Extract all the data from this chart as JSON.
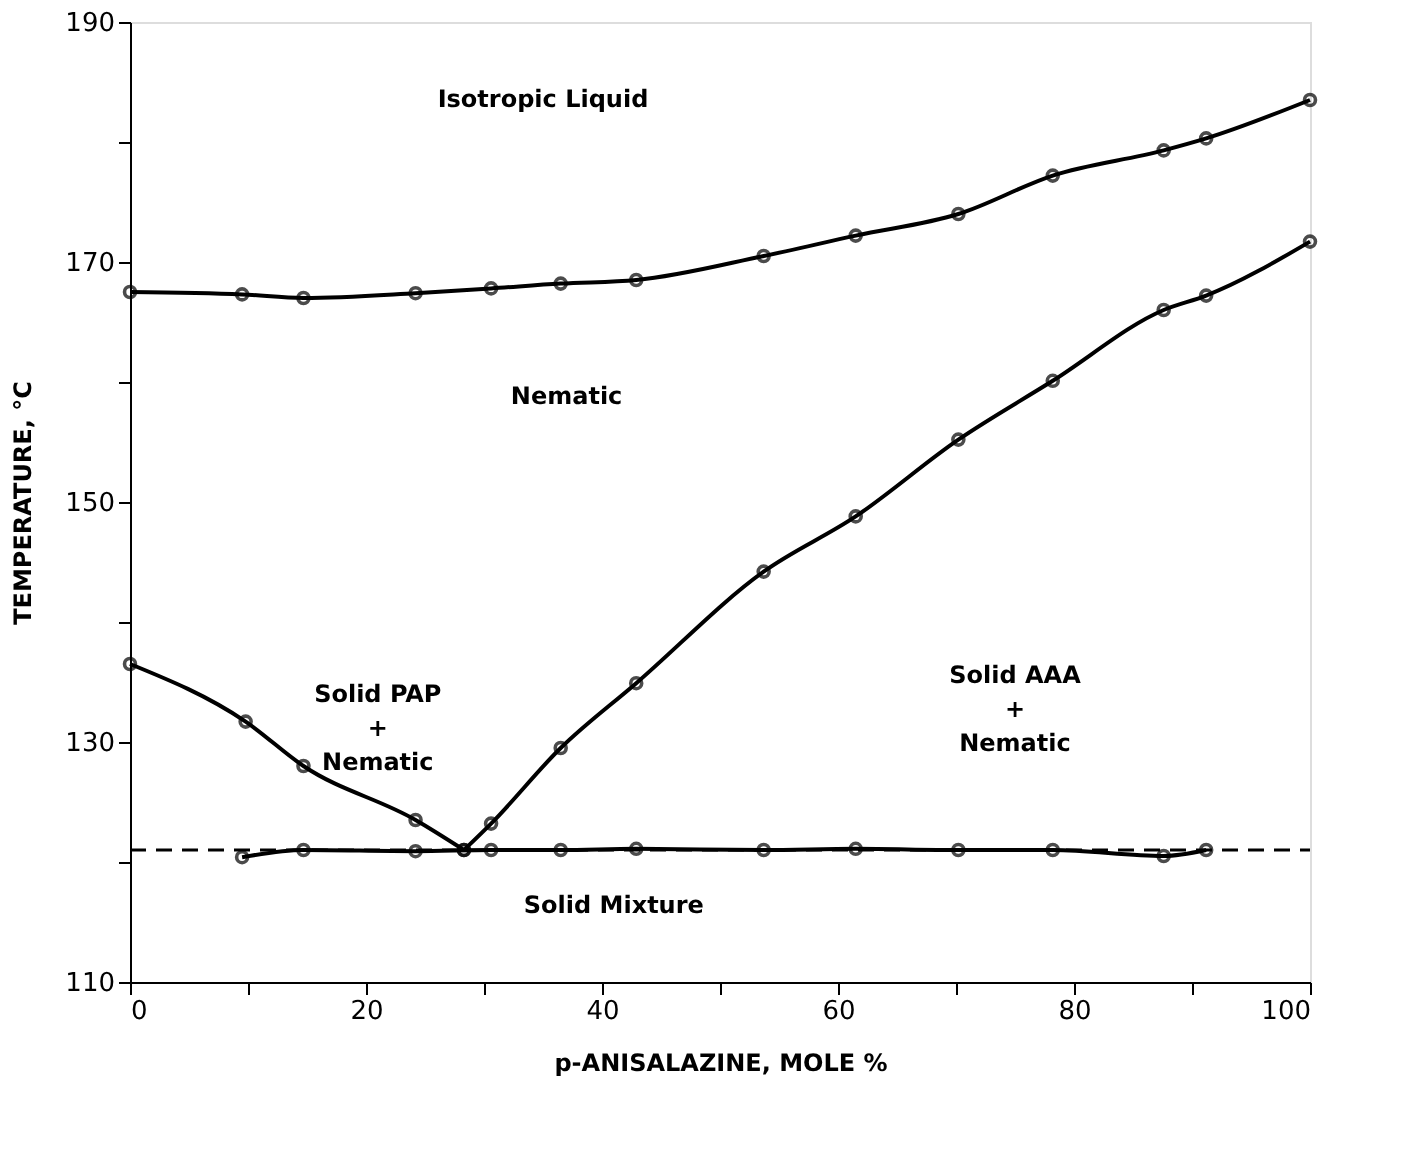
{
  "chart_data": {
    "type": "line",
    "xlabel": "p-ANISALAZINE, MOLE %",
    "ylabel": "TEMPERATURE, °C",
    "xlim": [
      0,
      100
    ],
    "ylim": [
      110,
      190
    ],
    "xticks": [
      0,
      {
        "value": 10,
        "label": null
      },
      20,
      {
        "value": 30,
        "label": null
      },
      40,
      {
        "value": 50,
        "label": null
      },
      60,
      {
        "value": 70,
        "label": null
      },
      80,
      {
        "value": 90,
        "label": null
      },
      100
    ],
    "yticks": [
      110,
      {
        "value": 120,
        "label": null
      },
      130,
      {
        "value": 140,
        "label": null
      },
      150,
      {
        "value": 160,
        "label": null
      },
      170,
      {
        "value": 180,
        "label": null
      },
      190
    ],
    "grid": false,
    "marker": "circle",
    "series": [
      {
        "color": "#000000",
        "x": [
          0,
          9.5,
          14.7,
          24.2,
          30.6,
          36.5,
          42.9,
          53.7,
          61.5,
          70.2,
          78.2,
          87.6,
          91.2,
          100
        ],
        "values": [
          167.5,
          167.3,
          167.0,
          167.4,
          167.8,
          168.2,
          168.5,
          170.5,
          172.2,
          174.0,
          177.2,
          179.3,
          180.3,
          183.5
        ]
      },
      {
        "color": "#000000",
        "x": [
          0,
          9.8,
          14.7,
          24.2,
          28.3
        ],
        "values": [
          136.5,
          131.7,
          128.0,
          123.5,
          121.0
        ]
      },
      {
        "color": "#000000",
        "x": [
          28.3,
          30.6,
          36.5,
          42.9,
          53.7,
          61.5,
          70.2,
          78.2,
          87.6,
          91.2,
          100
        ],
        "values": [
          121.0,
          123.2,
          129.5,
          134.9,
          144.2,
          148.8,
          155.2,
          160.1,
          166.0,
          167.2,
          171.7
        ]
      },
      {
        "color": "#000000",
        "x": [
          9.5,
          14.7,
          24.2,
          30.6,
          36.5,
          42.9,
          53.7,
          61.5,
          70.2,
          78.2,
          87.6,
          91.2
        ],
        "values": [
          120.4,
          121.0,
          120.9,
          121.0,
          121.0,
          121.1,
          121.0,
          121.1,
          121.0,
          121.0,
          120.5,
          121.0
        ]
      }
    ],
    "ref_lines": [
      {
        "axis": "y",
        "value": 121,
        "line_style": "dashed",
        "color": "#000000"
      }
    ],
    "annotations": [
      "Isotropic Liquid",
      "Nematic",
      "Solid PAP\n+\nNematic",
      "Solid AAA\n+\nNematic",
      "Solid  Mixture"
    ]
  }
}
